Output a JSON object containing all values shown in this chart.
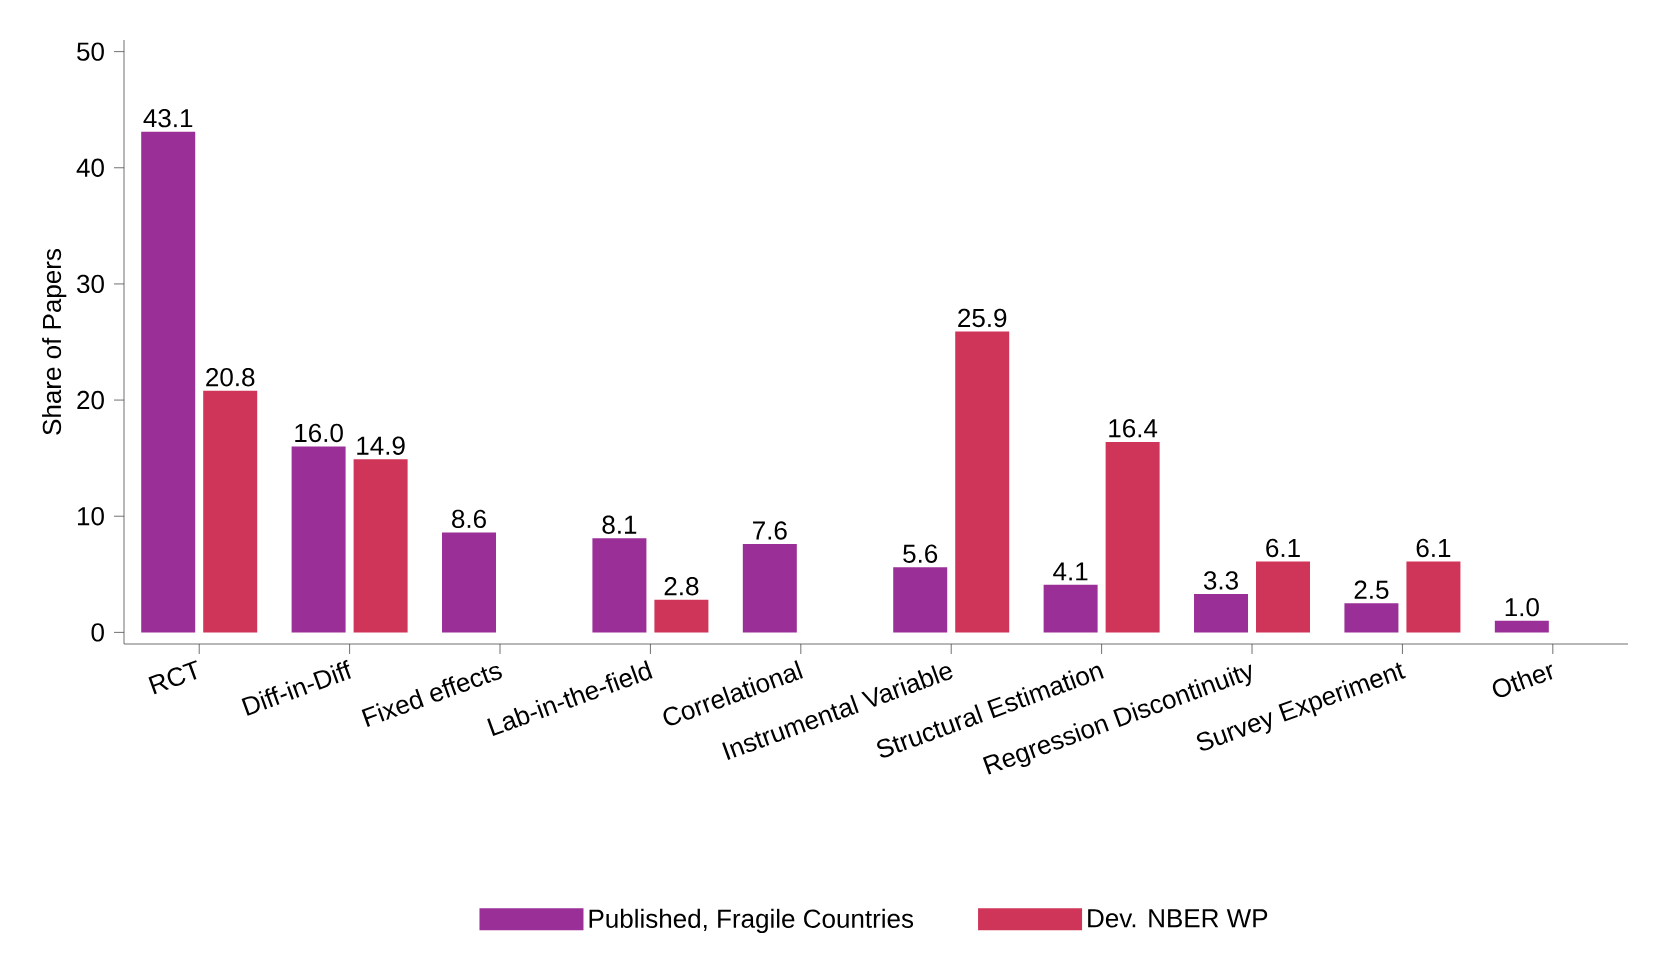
{
  "chart_data": {
    "type": "bar",
    "ylabel": "Share of Papers",
    "categories": [
      "RCT",
      "Diff-in-Diff",
      "Fixed effects",
      "Lab-in-the-field",
      "Correlational",
      "Instrumental Variable",
      "Structural Estimation",
      "Regression Discontinuity",
      "Survey Experiment",
      "Other"
    ],
    "series": [
      {
        "name": "Published, Fragile Countries",
        "color": "#9b2f98",
        "values": [
          43.1,
          16.0,
          8.6,
          8.1,
          7.6,
          5.6,
          4.1,
          3.3,
          2.5,
          1.0
        ],
        "value_labels": [
          "43.1",
          "16.0",
          "8.6",
          "8.1",
          "7.6",
          "5.6",
          "4.1",
          "3.3",
          "2.5",
          "1.0"
        ]
      },
      {
        "name": "Dev. NBER WP",
        "color": "#cf3459",
        "values": [
          20.8,
          14.9,
          null,
          2.8,
          null,
          25.9,
          16.4,
          6.1,
          6.1,
          null
        ],
        "value_labels": [
          "20.8",
          "14.9",
          null,
          "2.8",
          null,
          "25.9",
          "16.4",
          "6.1",
          "6.1",
          null
        ]
      }
    ],
    "ylim": [
      -1,
      51
    ],
    "yticks": [
      0,
      10,
      20,
      30,
      40,
      50
    ],
    "legend": "bottom",
    "grid": false
  }
}
